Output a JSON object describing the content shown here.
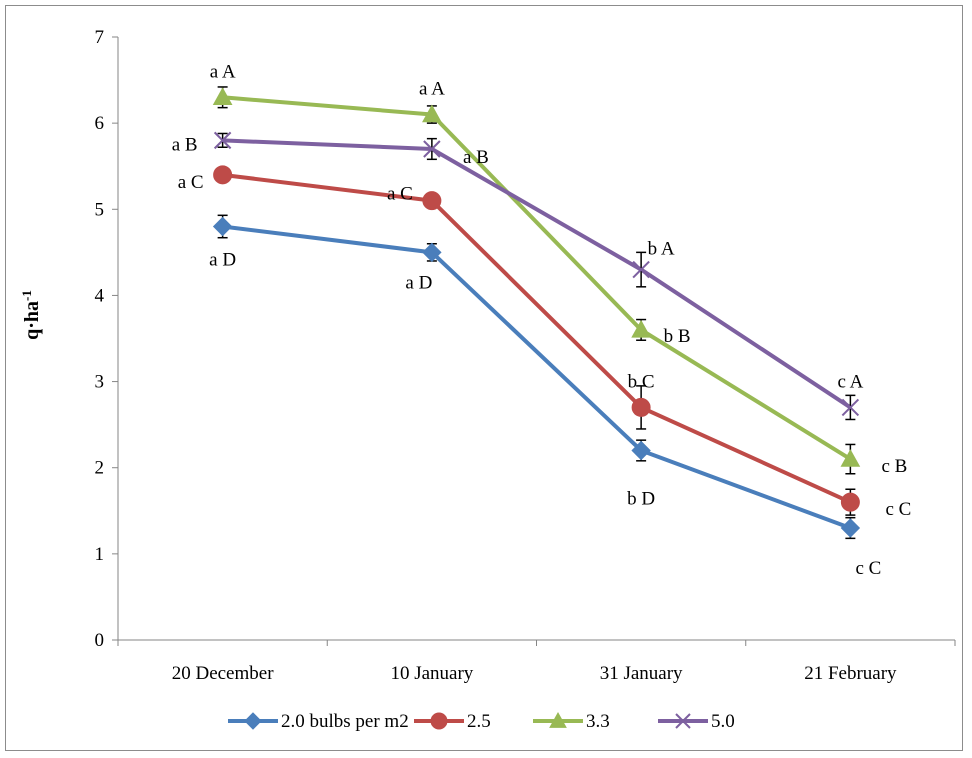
{
  "chart_data": {
    "type": "line",
    "title": "",
    "xlabel": "",
    "ylabel": "q·ha",
    "ylabel_sup": "-1",
    "ylim": [
      0,
      7
    ],
    "yticks": [
      0,
      1,
      2,
      3,
      4,
      5,
      6,
      7
    ],
    "categories": [
      "20 December",
      "10 January",
      "31 January",
      "21 February"
    ],
    "grid": false,
    "legend_position": "bottom",
    "series": [
      {
        "name": "2.0 bulbs per m2",
        "color": "#4a7ebb",
        "marker": "diamond",
        "values": [
          4.8,
          4.5,
          2.2,
          1.3
        ],
        "errors": [
          0.13,
          0.1,
          0.12,
          0.12
        ],
        "labels": [
          "a  D",
          "a  D",
          "b  D",
          "c  C"
        ]
      },
      {
        "name": "2.5",
        "color": "#be4b48",
        "marker": "circle",
        "values": [
          5.4,
          5.1,
          2.7,
          1.6
        ],
        "errors": [
          0.08,
          0.07,
          0.25,
          0.15
        ],
        "labels": [
          "a  C",
          "a  C",
          "b  C",
          "c  C"
        ]
      },
      {
        "name": "3.3",
        "color": "#98b954",
        "marker": "triangle",
        "values": [
          6.3,
          6.1,
          3.6,
          2.1
        ],
        "errors": [
          0.12,
          0.1,
          0.12,
          0.17
        ],
        "labels": [
          "a  A",
          "a  A",
          "b  B",
          "c  B"
        ]
      },
      {
        "name": "5.0",
        "color": "#7d60a0",
        "marker": "x",
        "values": [
          5.8,
          5.7,
          4.3,
          2.7
        ],
        "errors": [
          0.08,
          0.12,
          0.2,
          0.14
        ],
        "labels": [
          "a  B",
          "a  B",
          "b  A",
          "c  A"
        ]
      }
    ]
  }
}
